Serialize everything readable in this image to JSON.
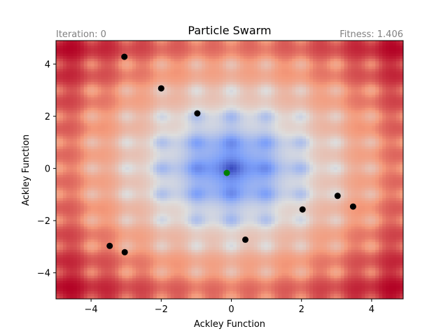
{
  "chart_data": {
    "type": "scatter",
    "title": "Particle Swarm",
    "left_annotation": "Iteration: 0",
    "right_annotation": "Fitness: 1.406",
    "xlabel": "Ackley Function",
    "ylabel": "Ackley Function",
    "xlim": [
      -5,
      4.9
    ],
    "ylim": [
      -5,
      4.9
    ],
    "xticks": [
      -4,
      -2,
      0,
      2,
      4
    ],
    "yticks": [
      -4,
      -2,
      0,
      2,
      4
    ],
    "xtick_labels": [
      "−4",
      "−2",
      "0",
      "2",
      "4"
    ],
    "ytick_labels": [
      "−4",
      "−2",
      "0",
      "2",
      "4"
    ],
    "background": "ackley-function-heatmap",
    "colormap": "coolwarm",
    "grid": false,
    "series": [
      {
        "color": "#000000",
        "points": [
          {
            "x": -3.05,
            "y": 4.28
          },
          {
            "x": -2.0,
            "y": 3.07
          },
          {
            "x": -0.97,
            "y": 2.11
          },
          {
            "x": 3.03,
            "y": -1.05
          },
          {
            "x": 3.47,
            "y": -1.46
          },
          {
            "x": 2.03,
            "y": -1.57
          },
          {
            "x": 0.4,
            "y": -2.73
          },
          {
            "x": -3.47,
            "y": -2.97
          },
          {
            "x": -3.04,
            "y": -3.21
          }
        ]
      },
      {
        "color": "#008000",
        "points": [
          {
            "x": -0.13,
            "y": -0.17
          }
        ]
      }
    ]
  }
}
